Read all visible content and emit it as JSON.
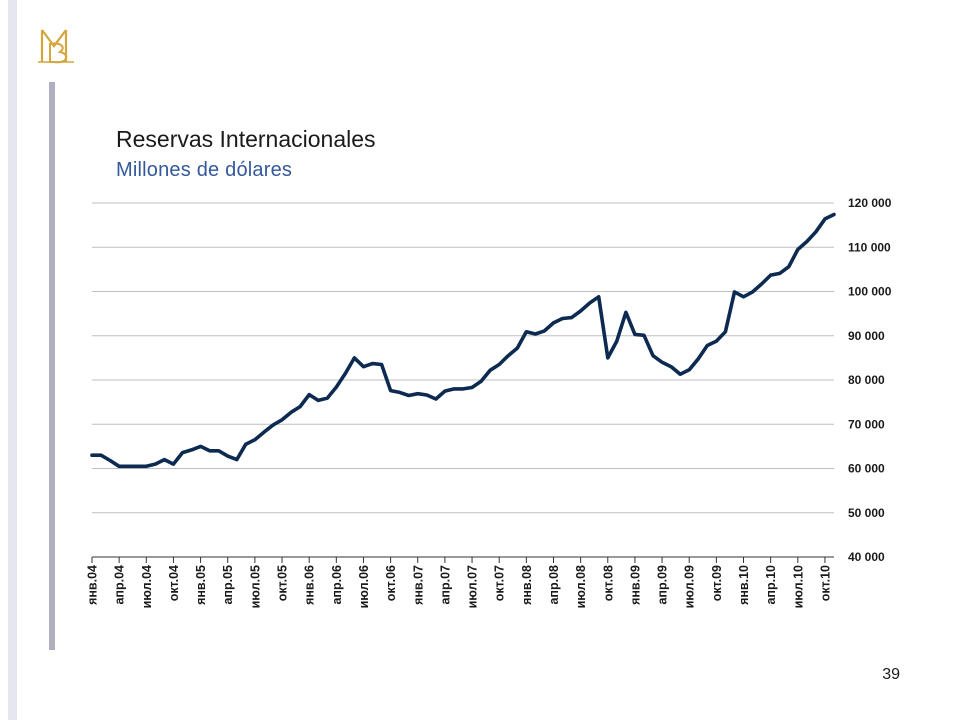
{
  "slide": {
    "title": "Reservas Internacionales",
    "subtitle": "Millones  de  dólares",
    "page_number": "39",
    "colors": {
      "line": "#0d2a50",
      "subtitle": "#34589c",
      "grid": "#bfbfbf",
      "accent_bar": "#aeb0c0",
      "logo": "#d4a63c"
    }
  },
  "chart_data": {
    "type": "line",
    "title": "Reservas Internacionales",
    "subtitle": "Millones  de  dólares",
    "xlabel": "",
    "ylabel": "",
    "ylim": [
      40000,
      120000
    ],
    "y_ticks": [
      40000,
      50000,
      60000,
      70000,
      80000,
      90000,
      100000,
      110000,
      120000
    ],
    "y_tick_labels": [
      "40 000",
      "50 000",
      "60 000",
      "70 000",
      "80 000",
      "90 000",
      "100 000",
      "110 000",
      "120 000"
    ],
    "y_axis_side": "right",
    "grid": true,
    "x_tick_labels": [
      "янв.04",
      "апр.04",
      "июл.04",
      "окт.04",
      "янв.05",
      "апр.05",
      "июл.05",
      "окт.05",
      "янв.06",
      "апр.06",
      "июл.06",
      "окт.06",
      "янв.07",
      "апр.07",
      "июл.07",
      "окт.07",
      "янв.08",
      "апр.08",
      "июл.08",
      "окт.08",
      "янв.09",
      "апр.09",
      "июл.09",
      "окт.09",
      "янв.10",
      "апр.10",
      "июл.10",
      "окт.10"
    ],
    "series": [
      {
        "values": [
          63000,
          63000,
          61800,
          60500,
          60500,
          60500,
          60500,
          61000,
          62000,
          61000,
          63600,
          64200,
          65000,
          64000,
          64000,
          62800,
          62000,
          65500,
          66500,
          68200,
          69800,
          71000,
          72700,
          74000,
          76700,
          75400,
          75900,
          78400,
          81500,
          85000,
          83000,
          83700,
          83500,
          77600,
          77200,
          76500,
          76900,
          76600,
          75700,
          77500,
          78000,
          78000,
          78300,
          79700,
          82200,
          83500,
          85500,
          87200,
          90900,
          90400,
          91100,
          92900,
          93900,
          94100,
          95600,
          97400,
          98800,
          85000,
          88800,
          95300,
          90300,
          90100,
          85500,
          84000,
          83000,
          81300,
          82300,
          84800,
          87800,
          88800,
          90900,
          99900,
          98800,
          99900,
          101700,
          103700,
          104100,
          105600,
          109500,
          111300,
          113500,
          116400,
          117400
        ]
      }
    ]
  }
}
